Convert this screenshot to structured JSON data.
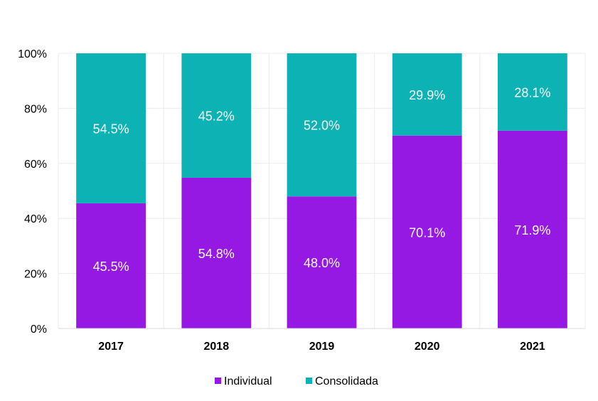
{
  "chart_data": {
    "type": "bar",
    "stacked": true,
    "categories": [
      "2017",
      "2018",
      "2019",
      "2020",
      "2021"
    ],
    "series": [
      {
        "name": "Individual",
        "values": [
          45.5,
          54.8,
          48.0,
          70.1,
          71.9
        ],
        "labels": [
          "45.5%",
          "54.8%",
          "48.0%",
          "70.1%",
          "71.9%"
        ],
        "color": "#9619E3"
      },
      {
        "name": "Consolidada",
        "values": [
          54.5,
          45.2,
          52.0,
          29.9,
          28.1
        ],
        "labels": [
          "54.5%",
          "45.2%",
          "52.0%",
          "29.9%",
          "28.1%"
        ],
        "color": "#0DB2B4"
      }
    ],
    "ylim": [
      0,
      100
    ],
    "yticks": [
      0,
      20,
      40,
      60,
      80,
      100
    ],
    "ytick_labels": [
      "0%",
      "20%",
      "40%",
      "60%",
      "80%",
      "100%"
    ],
    "grid": true,
    "legend_position": "bottom"
  }
}
